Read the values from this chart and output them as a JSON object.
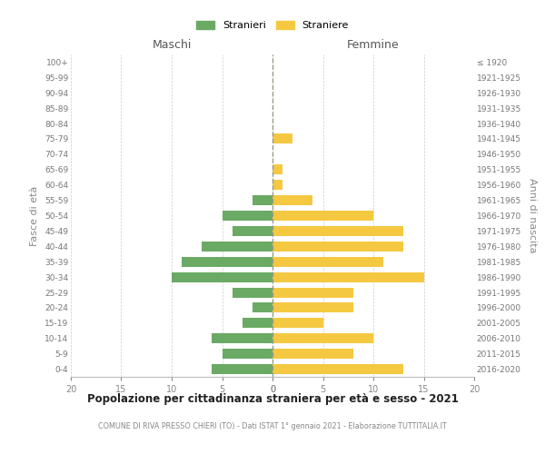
{
  "age_groups": [
    "0-4",
    "5-9",
    "10-14",
    "15-19",
    "20-24",
    "25-29",
    "30-34",
    "35-39",
    "40-44",
    "45-49",
    "50-54",
    "55-59",
    "60-64",
    "65-69",
    "70-74",
    "75-79",
    "80-84",
    "85-89",
    "90-94",
    "95-99",
    "100+"
  ],
  "birth_years": [
    "2016-2020",
    "2011-2015",
    "2006-2010",
    "2001-2005",
    "1996-2000",
    "1991-1995",
    "1986-1990",
    "1981-1985",
    "1976-1980",
    "1971-1975",
    "1966-1970",
    "1961-1965",
    "1956-1960",
    "1951-1955",
    "1946-1950",
    "1941-1945",
    "1936-1940",
    "1931-1935",
    "1926-1930",
    "1921-1925",
    "≤ 1920"
  ],
  "males": [
    6,
    5,
    6,
    3,
    2,
    4,
    10,
    9,
    7,
    4,
    5,
    2,
    0,
    0,
    0,
    0,
    0,
    0,
    0,
    0,
    0
  ],
  "females": [
    13,
    8,
    10,
    5,
    8,
    8,
    15,
    11,
    13,
    13,
    10,
    4,
    1,
    1,
    0,
    2,
    0,
    0,
    0,
    0,
    0
  ],
  "male_color": "#6aaa64",
  "female_color": "#f5c842",
  "title": "Popolazione per cittadinanza straniera per età e sesso - 2021",
  "subtitle": "COMUNE DI RIVA PRESSO CHIERI (TO) - Dati ISTAT 1° gennaio 2021 - Elaborazione TUTTITALIA.IT",
  "left_label": "Maschi",
  "right_label": "Femmine",
  "ylabel_left": "Fasce di età",
  "ylabel_right": "Anni di nascita",
  "legend_stranieri": "Stranieri",
  "legend_straniere": "Straniere",
  "xlim": 20,
  "background_color": "#ffffff",
  "grid_color": "#cccccc"
}
